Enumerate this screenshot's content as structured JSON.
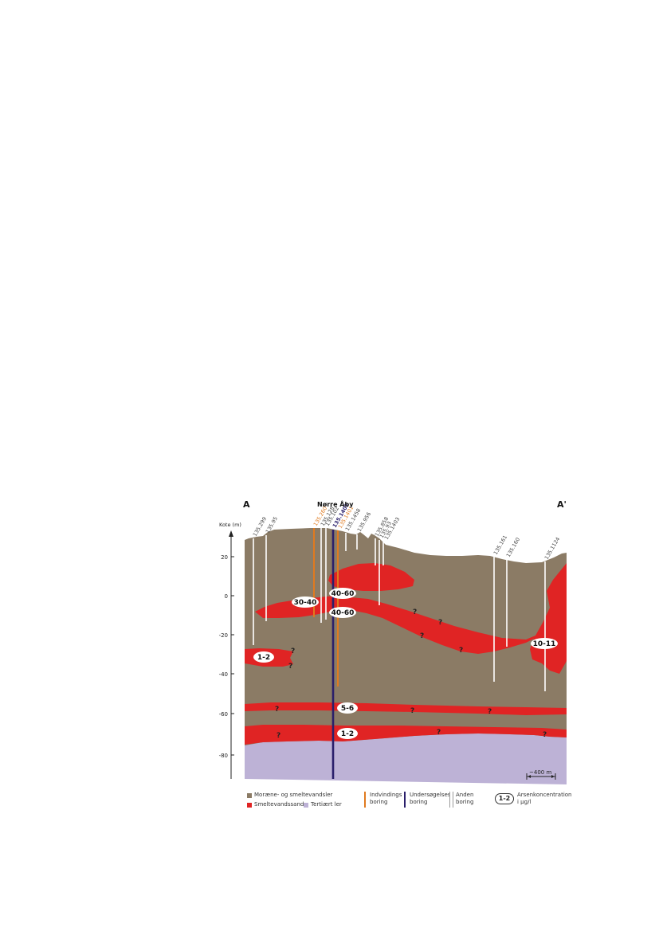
{
  "section": {
    "start_label": "A",
    "end_label": "A'",
    "town": "Nørre Åby",
    "y_axis_title": "Kote (m)",
    "y_ticks": [
      "20",
      "0",
      "-20",
      "-40",
      "-60",
      "-80"
    ],
    "scale_text": "~400 m"
  },
  "colors": {
    "moraine": "#8b7b65",
    "sand": "#e02424",
    "clay": "#bdb2d6",
    "extraction": "#e07a1f",
    "investigation": "#2a1f6b",
    "other": "#ffffff"
  },
  "boreholes": [
    {
      "id": "135.299",
      "kind": "other"
    },
    {
      "id": "135.95",
      "kind": "other"
    },
    {
      "id": "135.260",
      "kind": "extraction"
    },
    {
      "id": "135.128",
      "kind": "other"
    },
    {
      "id": "135.102",
      "kind": "other"
    },
    {
      "id": "135.1402",
      "kind": "investigation"
    },
    {
      "id": "135.1401",
      "kind": "extraction"
    },
    {
      "id": "135.1458",
      "kind": "other"
    },
    {
      "id": "135.956",
      "kind": "other"
    },
    {
      "id": "135.858",
      "kind": "other"
    },
    {
      "id": "135.93",
      "kind": "other"
    },
    {
      "id": "135.1403",
      "kind": "other"
    },
    {
      "id": "135.161",
      "kind": "other"
    },
    {
      "id": "135.160",
      "kind": "other"
    },
    {
      "id": "135.1124",
      "kind": "other"
    }
  ],
  "concentrations": [
    "30-40",
    "40-60",
    "40-60",
    "1-2",
    "10-11",
    "5-6",
    "1-2"
  ],
  "unknown_mark": "?",
  "legend": {
    "moraine": "Moræne- og smeltevandsler",
    "sand": "Smeltevandssand",
    "clay": "Tertiært ler",
    "extraction_1": "Indvindings",
    "extraction_2": "boring",
    "investigation_1": "Undersøgelses",
    "investigation_2": "boring",
    "other_1": "Anden",
    "other_2": "boring",
    "arsenic_sample": "1-2",
    "arsenic_1": "Arsenkoncentration",
    "arsenic_2": "i µg/l"
  }
}
